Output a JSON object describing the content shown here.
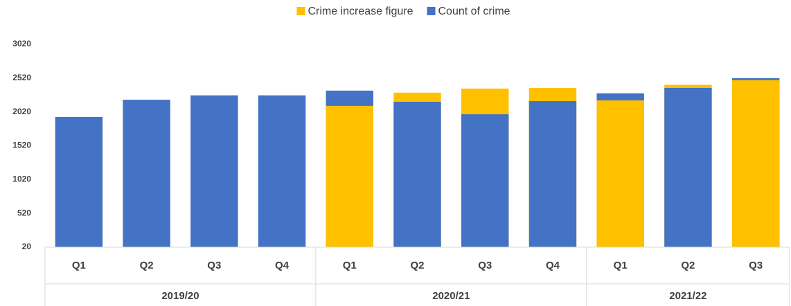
{
  "chart_data": {
    "type": "bar",
    "overlap": true,
    "groups": [
      {
        "label": "2019/20",
        "categories": [
          "Q1",
          "Q2",
          "Q3",
          "Q4"
        ]
      },
      {
        "label": "2020/21",
        "categories": [
          "Q1",
          "Q2",
          "Q3",
          "Q4"
        ]
      },
      {
        "label": "2021/22",
        "categories": [
          "Q1",
          "Q2",
          "Q3"
        ]
      }
    ],
    "series": [
      {
        "name": "Crime increase figure",
        "color": "#ffc000",
        "values": [
          null,
          null,
          null,
          null,
          2110,
          2305,
          2365,
          2375,
          2190,
          2420,
          2490
        ]
      },
      {
        "name": "Count of crime",
        "color": "#4472c4",
        "values": [
          1945,
          2200,
          2265,
          2265,
          2335,
          2170,
          1985,
          2180,
          2295,
          2375,
          2520
        ]
      }
    ],
    "ylim": [
      20,
      3020
    ],
    "yticks": [
      20,
      520,
      1020,
      1520,
      2020,
      2520,
      3020
    ],
    "grid": false,
    "legend": "top"
  }
}
